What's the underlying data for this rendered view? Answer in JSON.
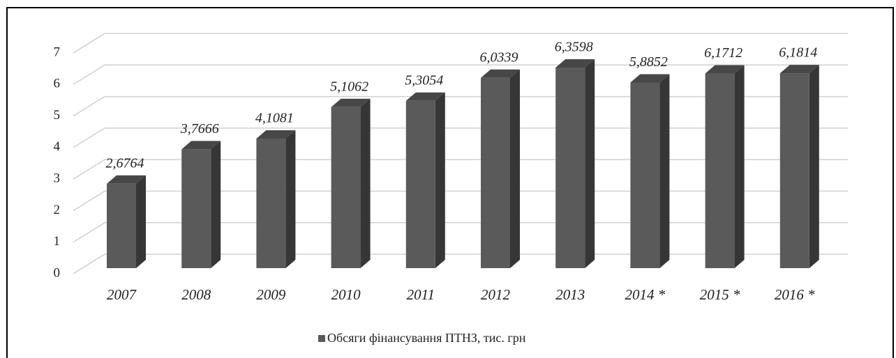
{
  "chart_data": {
    "type": "bar3d",
    "categories": [
      "2007",
      "2008",
      "2009",
      "2010",
      "2011",
      "2012",
      "2013",
      "2014 *",
      "2015 *",
      "2016 *"
    ],
    "series": [
      {
        "name": "Обсяги фінансування ПТНЗ, тис. грн",
        "color": "#5a5a5a",
        "values": [
          2.6764,
          3.7666,
          4.1081,
          5.1062,
          5.3054,
          6.0339,
          6.3598,
          5.8852,
          6.1712,
          6.1814
        ],
        "value_labels": [
          "2,6764",
          "3,7666",
          "4,1081",
          "5,1062",
          "5,3054",
          "6,0339",
          "6,3598",
          "5,8852",
          "6,1712",
          "6,1814"
        ]
      }
    ],
    "ylim": [
      0,
      7
    ],
    "yticks": [
      0,
      1,
      2,
      3,
      4,
      5,
      6,
      7
    ],
    "grid": true,
    "legend": "bottom"
  }
}
